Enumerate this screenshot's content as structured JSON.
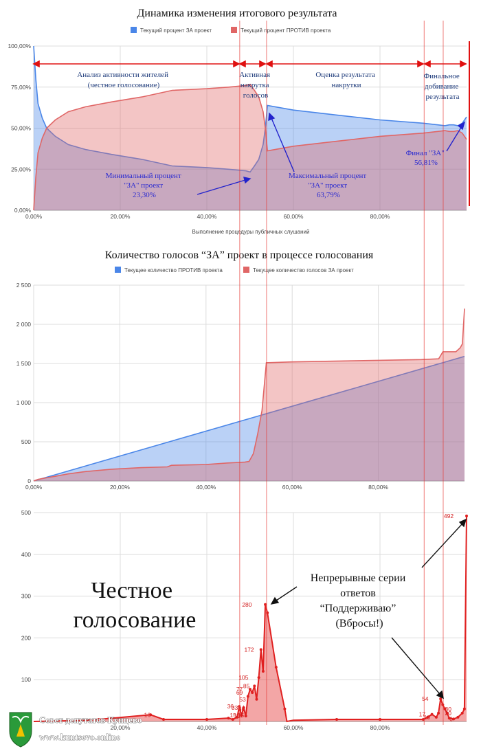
{
  "chart_data": [
    {
      "id": "chart1",
      "type": "area",
      "title": "Динамика изменения итогового результата",
      "xlabel": "Выполнение процедуры публичных слушаний",
      "xlim": [
        0,
        100
      ],
      "ylim": [
        0,
        100
      ],
      "x_ticks": [
        "0,00%",
        "20,00%",
        "40,00%",
        "60,00%",
        "80,00%"
      ],
      "y_ticks": [
        "0,00%",
        "25,00%",
        "50,00%",
        "75,00%",
        "100,00%"
      ],
      "legend": [
        "Текущий процент ЗА проект",
        "Текущий процент ПРОТИВ проекта"
      ],
      "series": [
        {
          "name": "Текущий процент ЗА проект",
          "color": "#4a86e8",
          "x": [
            0,
            0.5,
            1,
            2,
            3,
            5,
            8,
            12,
            18,
            25,
            32,
            40,
            45,
            49,
            50,
            51,
            52,
            53,
            53.5,
            54,
            60,
            70,
            80,
            90,
            95,
            96,
            97,
            98,
            99,
            100
          ],
          "y": [
            100,
            80,
            65,
            56,
            50,
            45,
            40,
            37,
            34,
            31,
            27,
            26,
            25,
            24,
            23.3,
            27,
            31,
            40,
            50,
            63.79,
            61,
            58,
            55,
            53,
            51.5,
            52,
            52,
            51.5,
            53,
            56.81
          ]
        },
        {
          "name": "Текущий процент ПРОТИВ проекта",
          "color": "#e06666",
          "x": [
            0,
            0.5,
            1,
            2,
            3,
            5,
            8,
            12,
            18,
            25,
            32,
            40,
            45,
            49,
            50,
            51,
            52,
            53,
            53.5,
            54,
            60,
            70,
            80,
            90,
            95,
            96,
            97,
            98,
            99,
            100
          ],
          "y": [
            0,
            20,
            35,
            44,
            50,
            55,
            60,
            63,
            66,
            69,
            73,
            74,
            75,
            76,
            76.7,
            73,
            69,
            60,
            50,
            36.2,
            39,
            42,
            45,
            47,
            48.5,
            48,
            48,
            48.5,
            47,
            43.19
          ]
        }
      ],
      "annotations": {
        "seg1": [
          "Анализ активности жителей",
          "(честное голосование)"
        ],
        "seg2": [
          "Активная",
          "накрутка",
          "голосов"
        ],
        "seg3": [
          "Оценка результата",
          "накрутки"
        ],
        "seg4": [
          "Финальное",
          "добивание",
          "результата"
        ],
        "min": [
          "Минимальный процент",
          "\"ЗА\" проект",
          "23,30%"
        ],
        "max": [
          "Максимальный процент",
          "\"ЗА\" проект",
          "63,79%"
        ],
        "fin": [
          "Финал \"ЗА\"",
          "56,81%"
        ]
      }
    },
    {
      "id": "chart2",
      "type": "area",
      "title": "Количество голосов “ЗА” проект в процессе голосования",
      "xlim": [
        0,
        100
      ],
      "ylim": [
        0,
        2500
      ],
      "x_ticks": [
        "0,00%",
        "20,00%",
        "40,00%",
        "60,00%",
        "80,00%"
      ],
      "y_ticks": [
        "0",
        "500",
        "1 000",
        "1 500",
        "2 000",
        "2 500"
      ],
      "legend": [
        "Текущее количество ПРОТИВ проекта",
        "Текущее количество голосов ЗА проект"
      ],
      "series": [
        {
          "name": "Текущее количество ПРОТИВ проекта",
          "color": "#4a86e8",
          "x": [
            0,
            100
          ],
          "y": [
            0,
            1590
          ]
        },
        {
          "name": "Текущее количество голосов ЗА проект",
          "color": "#e06666",
          "x": [
            0,
            1,
            3,
            5,
            8,
            12,
            18,
            25,
            31,
            32,
            40,
            45,
            49,
            50,
            51,
            52,
            53,
            53.5,
            54,
            60,
            70,
            80,
            90,
            94,
            95,
            98,
            99,
            99.5,
            100
          ],
          "y": [
            0,
            20,
            40,
            60,
            90,
            120,
            150,
            170,
            180,
            200,
            210,
            230,
            240,
            250,
            350,
            600,
            900,
            1200,
            1510,
            1520,
            1530,
            1540,
            1550,
            1560,
            1650,
            1650,
            1700,
            1750,
            2200
          ]
        }
      ]
    },
    {
      "id": "chart3",
      "type": "area",
      "xlim": [
        0,
        100
      ],
      "ylim": [
        0,
        500
      ],
      "x_ticks": [
        "20,00%",
        "40,00%",
        "60,00%",
        "80,00%"
      ],
      "y_ticks": [
        "100",
        "200",
        "300",
        "400",
        "500"
      ],
      "series": [
        {
          "name": "",
          "color": "#e02020",
          "x": [
            0,
            10,
            15,
            27,
            30,
            40,
            45,
            46,
            47,
            47.5,
            48,
            48.5,
            49,
            49.5,
            50,
            50.5,
            51,
            51.5,
            52,
            52.5,
            53,
            53.5,
            54,
            56,
            58,
            58.5,
            60,
            70,
            80,
            90,
            91,
            92,
            93,
            93.5,
            94,
            94.5,
            95,
            95.5,
            96,
            97,
            98,
            99,
            99.5,
            100
          ],
          "y": [
            0,
            2,
            5,
            16,
            5,
            5,
            8,
            5,
            10,
            36,
            15,
            33,
            13,
            60,
            77,
            69,
            85,
            53,
            105,
            172,
            120,
            280,
            260,
            130,
            30,
            0,
            3,
            5,
            5,
            5,
            10,
            17,
            10,
            20,
            54,
            40,
            30,
            20,
            8,
            6,
            10,
            20,
            30,
            492
          ]
        }
      ],
      "data_labels": [
        {
          "x": 27,
          "y": 16,
          "text": "16"
        },
        {
          "x": 46.2,
          "y": 36,
          "text": "36"
        },
        {
          "x": 47.2,
          "y": 33,
          "text": "33"
        },
        {
          "x": 46.8,
          "y": 15,
          "text": "15"
        },
        {
          "x": 47.8,
          "y": 13,
          "text": "13"
        },
        {
          "x": 48.8,
          "y": 30,
          "text": "30"
        },
        {
          "x": 48.6,
          "y": 15,
          "text": "15"
        },
        {
          "x": 48.3,
          "y": 77,
          "text": "77"
        },
        {
          "x": 48.3,
          "y": 69,
          "text": "69"
        },
        {
          "x": 49.9,
          "y": 85,
          "text": "85"
        },
        {
          "x": 49.0,
          "y": 53,
          "text": "53"
        },
        {
          "x": 49.6,
          "y": 105,
          "text": "105"
        },
        {
          "x": 50.9,
          "y": 172,
          "text": "172"
        },
        {
          "x": 50.4,
          "y": 280,
          "text": "280"
        },
        {
          "x": 91.2,
          "y": 54,
          "text": "54"
        },
        {
          "x": 90.5,
          "y": 17,
          "text": "17"
        },
        {
          "x": 91.6,
          "y": 10,
          "text": "10"
        },
        {
          "x": 96.5,
          "y": 30,
          "text": "30"
        },
        {
          "x": 96.5,
          "y": 20,
          "text": "20"
        },
        {
          "x": 96.8,
          "y": 6,
          "text": "6"
        },
        {
          "x": 97.0,
          "y": 492,
          "text": "492"
        }
      ],
      "annotations": {
        "left": [
          "Честное",
          "голосование"
        ],
        "right": [
          "Непрерывные серии",
          "ответов",
          "“Поддерживаю”",
          "(Вбросы!)"
        ]
      }
    }
  ],
  "logo": {
    "line1": "Совет депутатов Кунцево",
    "line2": "www.kuntsevo.online"
  },
  "colors": {
    "blue": "#4a86e8",
    "red": "#e06666",
    "bright_red": "#e02020",
    "annotation_red": "#e01010",
    "annotation_blue": "#2222cc"
  }
}
